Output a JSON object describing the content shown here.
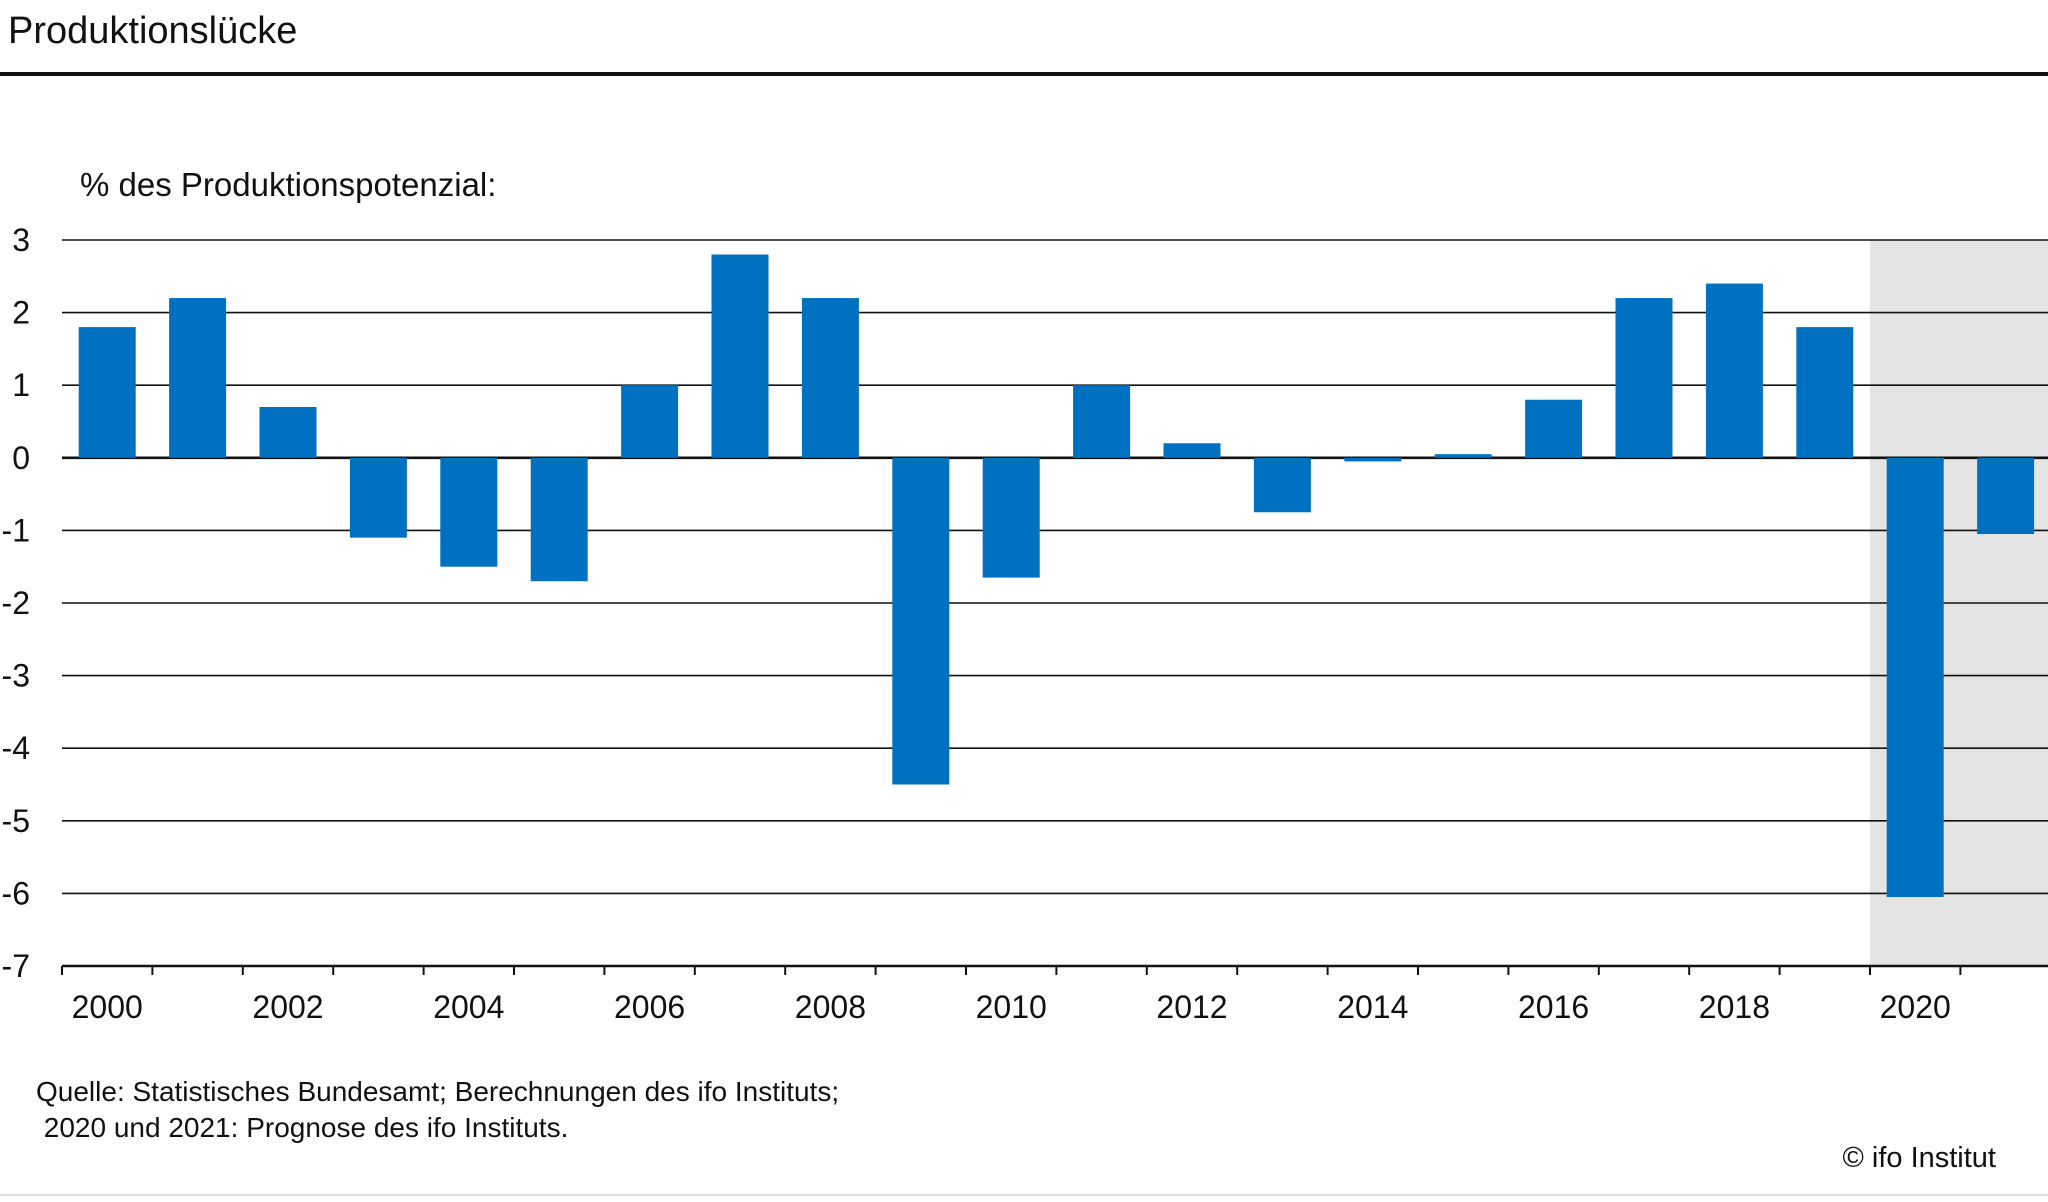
{
  "header": {
    "title": "Produktionslücke"
  },
  "chart_data": {
    "type": "bar",
    "title": "Produktionslücke",
    "ylabel": "% des Produktionspotenzial:",
    "xlabel": "",
    "categories": [
      "2000",
      "2001",
      "2002",
      "2003",
      "2004",
      "2005",
      "2006",
      "2007",
      "2008",
      "2009",
      "2010",
      "2011",
      "2012",
      "2013",
      "2014",
      "2015",
      "2016",
      "2017",
      "2018",
      "2019",
      "2020",
      "2021"
    ],
    "x_tick_labels": [
      "2000",
      "2002",
      "2004",
      "2006",
      "2008",
      "2010",
      "2012",
      "2014",
      "2016",
      "2018",
      "2020"
    ],
    "y_ticks": [
      3,
      2,
      1,
      0,
      -1,
      -2,
      -3,
      -4,
      -5,
      -6,
      -7
    ],
    "values": [
      1.8,
      2.2,
      0.7,
      -1.1,
      -1.5,
      -1.7,
      1.0,
      2.8,
      2.2,
      -4.5,
      -1.65,
      1.0,
      0.2,
      -0.75,
      -0.05,
      0.05,
      0.8,
      2.2,
      2.4,
      1.8,
      -6.05,
      -1.05
    ],
    "ylim": [
      -7,
      3
    ],
    "forecast_categories": [
      "2020",
      "2021"
    ],
    "grid": true,
    "bar_color": "#0070c0",
    "forecast_shade_color": "#e4e4e4"
  },
  "footer": {
    "source_line1": "Quelle: Statistisches Bundesamt; Berechnungen des ifo Instituts;",
    "source_line2": " 2020 und 2021: Prognose des ifo Instituts.",
    "copyright": "© ifo Institut"
  }
}
